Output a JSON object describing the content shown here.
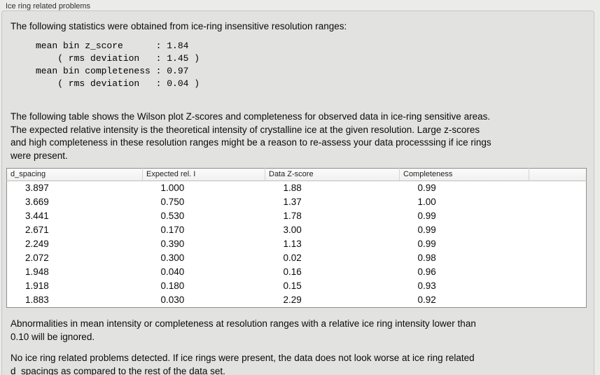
{
  "colors": {
    "page_bg": "#ebebea",
    "panel_bg": "#e2e2e1",
    "panel_border": "#c5c5c3",
    "table_border": "#8f8f8f",
    "table_header_bg": "#f6f6f5"
  },
  "header": {
    "title": "Ice ring related problems"
  },
  "panel": {
    "intro": "The following statistics were obtained from ice-ring insensitive resolution ranges:",
    "stats_block": "mean bin z_score      : 1.84\n    ( rms deviation   : 1.45 )\nmean bin completeness : 0.97\n    ( rms deviation   : 0.04 )",
    "stats": {
      "mean_bin_z_score": "1.84",
      "z_score_rms_deviation": "1.45",
      "mean_bin_completeness": "0.97",
      "completeness_rms_deviation": "0.04"
    },
    "description": "The following table shows the Wilson plot Z-scores and completeness for observed data in ice-ring sensitive areas.\nThe expected relative intensity is the theoretical intensity of crystalline ice at the given resolution. Large z-scores\nand high completeness in these resolution ranges might be a reason to re-assess your data processsing if ice rings\nwere present.",
    "ignore_note": "Abnormalities in mean intensity or completeness at resolution ranges with a relative ice ring intensity lower than\n0.10 will be ignored.",
    "conclusion": "No ice ring related problems detected. If ice rings were present, the data does not look worse at ice ring related\nd_spacings as compared to the rest of the data set."
  },
  "table": {
    "columns": [
      "d_spacing",
      "Expected rel. I",
      "Data Z-score",
      "Completeness",
      ""
    ],
    "rows": [
      [
        "3.897",
        "1.000",
        "1.88",
        "0.99"
      ],
      [
        "3.669",
        "0.750",
        "1.37",
        "1.00"
      ],
      [
        "3.441",
        "0.530",
        "1.78",
        "0.99"
      ],
      [
        "2.671",
        "0.170",
        "3.00",
        "0.99"
      ],
      [
        "2.249",
        "0.390",
        "1.13",
        "0.99"
      ],
      [
        "2.072",
        "0.300",
        "0.02",
        "0.98"
      ],
      [
        "1.948",
        "0.040",
        "0.16",
        "0.96"
      ],
      [
        "1.918",
        "0.180",
        "0.15",
        "0.93"
      ],
      [
        "1.883",
        "0.030",
        "2.29",
        "0.92"
      ]
    ]
  }
}
